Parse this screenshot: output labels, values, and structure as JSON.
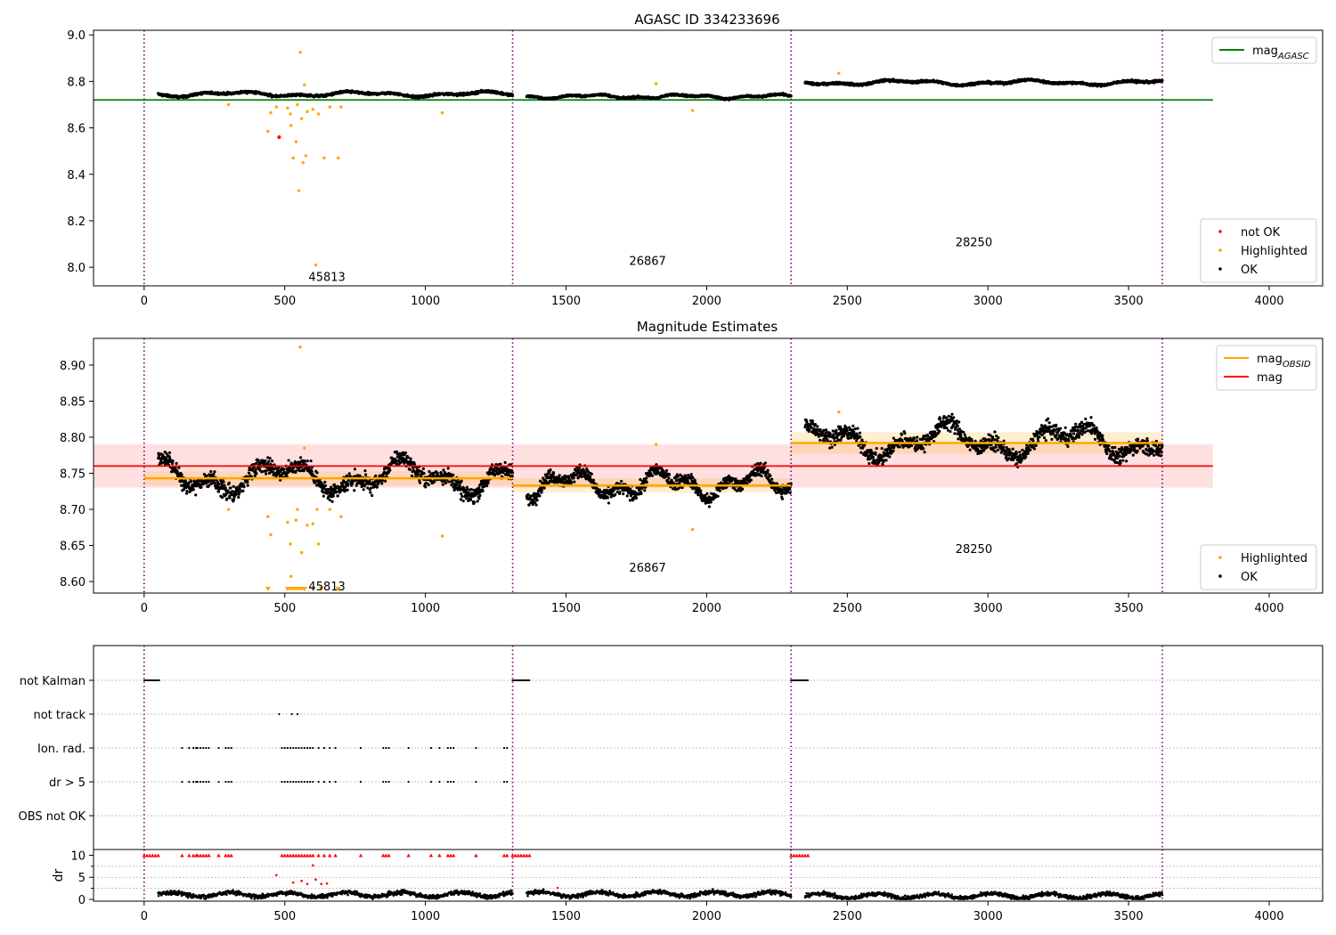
{
  "chart_data": [
    {
      "panel": "top",
      "type": "scatter",
      "title": "AGASC ID 334233696",
      "xlabel": "",
      "ylabel": "",
      "xlim": [
        -180,
        4190
      ],
      "ylim": [
        7.92,
        9.02
      ],
      "xticks": [
        0,
        500,
        1000,
        1500,
        2000,
        2500,
        3000,
        3500,
        4000
      ],
      "yticks": [
        8.0,
        8.2,
        8.4,
        8.6,
        8.8,
        9.0
      ],
      "ytick_labels": [
        "8.0",
        "8.2",
        "8.4",
        "8.6",
        "8.8",
        "9.0"
      ],
      "vlines": [
        0,
        1310,
        2300,
        3620
      ],
      "obsid_labels": [
        {
          "text": "45813",
          "x": 650,
          "y": 7.96
        },
        {
          "text": "26867",
          "x": 1790,
          "y": 8.03
        },
        {
          "text": "28250",
          "x": 2950,
          "y": 8.11
        }
      ],
      "hline": {
        "y": 8.72,
        "x_range": [
          -180,
          3800
        ],
        "color": "#008000",
        "label_main": "mag",
        "label_sub": "AGASC"
      },
      "segments": [
        {
          "x_range": [
            50,
            1310
          ],
          "level": 8.745,
          "amp": 0.03
        },
        {
          "x_range": [
            1360,
            2300
          ],
          "level": 8.735,
          "amp": 0.025
        },
        {
          "x_range": [
            2350,
            3620
          ],
          "level": 8.795,
          "amp": 0.03
        }
      ],
      "highlighted": [
        [
          300,
          8.7
        ],
        [
          440,
          8.585
        ],
        [
          450,
          8.665
        ],
        [
          470,
          8.69
        ],
        [
          510,
          8.685
        ],
        [
          520,
          8.66
        ],
        [
          522,
          8.61
        ],
        [
          530,
          8.47
        ],
        [
          540,
          8.54
        ],
        [
          545,
          8.7
        ],
        [
          550,
          8.33
        ],
        [
          555,
          8.925
        ],
        [
          560,
          8.64
        ],
        [
          565,
          8.45
        ],
        [
          570,
          8.785
        ],
        [
          575,
          8.48
        ],
        [
          580,
          8.67
        ],
        [
          600,
          8.68
        ],
        [
          610,
          8.01
        ],
        [
          620,
          8.66
        ],
        [
          640,
          8.47
        ],
        [
          660,
          8.69
        ],
        [
          690,
          8.47
        ],
        [
          700,
          8.69
        ],
        [
          1060,
          8.665
        ],
        [
          1820,
          8.79
        ],
        [
          1950,
          8.675
        ],
        [
          2470,
          8.835
        ]
      ],
      "not_ok": [
        [
          480,
          8.56
        ]
      ],
      "legend_top": [
        {
          "label": "mag",
          "sub": "AGASC",
          "color": "#008000",
          "style": "line"
        }
      ],
      "legend_bottom": [
        {
          "label": "not OK",
          "color": "#ff0000",
          "style": "dot"
        },
        {
          "label": "Highlighted",
          "color": "#ffa500",
          "style": "dot"
        },
        {
          "label": "OK",
          "color": "#000000",
          "style": "dot"
        }
      ]
    },
    {
      "panel": "middle",
      "type": "scatter",
      "title": "Magnitude Estimates",
      "xlabel": "",
      "ylabel": "",
      "xlim": [
        -180,
        4190
      ],
      "ylim": [
        8.584,
        8.937
      ],
      "xticks": [
        0,
        500,
        1000,
        1500,
        2000,
        2500,
        3000,
        3500,
        4000
      ],
      "yticks": [
        8.6,
        8.65,
        8.7,
        8.75,
        8.8,
        8.85,
        8.9
      ],
      "ytick_labels": [
        "8.60",
        "8.65",
        "8.70",
        "8.75",
        "8.80",
        "8.85",
        "8.90"
      ],
      "vlines": [
        0,
        1310,
        2300,
        3620
      ],
      "obsid_labels": [
        {
          "text": "45813",
          "x": 650,
          "y": 8.594
        },
        {
          "text": "26867",
          "x": 1790,
          "y": 8.62
        },
        {
          "text": "28250",
          "x": 2950,
          "y": 8.646
        }
      ],
      "mag_line": {
        "y": 8.76,
        "band": [
          8.73,
          8.79
        ],
        "x_range": [
          -180,
          3800
        ],
        "color": "#ff0000",
        "label": "mag"
      },
      "obsid_lines": [
        {
          "x_range": [
            0,
            1310
          ],
          "y": 8.743,
          "band": [
            8.733,
            8.753
          ]
        },
        {
          "x_range": [
            1310,
            2300
          ],
          "y": 8.733,
          "band": [
            8.723,
            8.743
          ]
        },
        {
          "x_range": [
            2300,
            3620
          ],
          "y": 8.792,
          "band": [
            8.777,
            8.807
          ]
        }
      ],
      "segments": [
        {
          "x_range": [
            50,
            1310
          ],
          "level": 8.745,
          "amp": 0.03
        },
        {
          "x_range": [
            1360,
            2300
          ],
          "level": 8.735,
          "amp": 0.025
        },
        {
          "x_range": [
            2350,
            3620
          ],
          "level": 8.795,
          "amp": 0.03
        }
      ],
      "highlighted": [
        [
          300,
          8.7
        ],
        [
          440,
          8.69
        ],
        [
          450,
          8.665
        ],
        [
          510,
          8.682
        ],
        [
          520,
          8.652
        ],
        [
          522,
          8.607
        ],
        [
          540,
          8.685
        ],
        [
          545,
          8.7
        ],
        [
          555,
          8.925
        ],
        [
          560,
          8.64
        ],
        [
          570,
          8.785
        ],
        [
          580,
          8.678
        ],
        [
          600,
          8.68
        ],
        [
          615,
          8.7
        ],
        [
          620,
          8.652
        ],
        [
          660,
          8.7
        ],
        [
          700,
          8.69
        ],
        [
          1060,
          8.663
        ],
        [
          1820,
          8.79
        ],
        [
          1950,
          8.672
        ],
        [
          2470,
          8.835
        ]
      ],
      "below_axis": [
        440,
        510,
        520,
        530,
        540,
        550,
        560,
        570,
        600,
        630,
        690
      ],
      "legend_top": [
        {
          "label": "mag",
          "sub": "OBSID",
          "color": "#ffa500",
          "style": "line"
        },
        {
          "label": "mag",
          "sub": "",
          "color": "#ff0000",
          "style": "line"
        }
      ],
      "legend_bottom": [
        {
          "label": "Highlighted",
          "color": "#ffa500",
          "style": "dot"
        },
        {
          "label": "OK",
          "color": "#000000",
          "style": "dot"
        }
      ]
    },
    {
      "panel": "flags",
      "type": "scatter",
      "xlim": [
        -180,
        4190
      ],
      "categories": [
        "not Kalman",
        "not track",
        "Ion. rad.",
        "dr > 5",
        "OBS not OK"
      ],
      "vlines": [
        0,
        1310,
        2300,
        3620
      ],
      "not_kalman_x_ranges": [
        [
          0,
          55
        ],
        [
          1310,
          1370
        ],
        [
          2300,
          2360
        ]
      ],
      "not_track_x": [
        480,
        525,
        545
      ],
      "ion_rad_x": [
        135,
        160,
        175,
        185,
        190,
        200,
        210,
        220,
        230,
        265,
        290,
        300,
        310,
        490,
        500,
        510,
        520,
        530,
        540,
        550,
        560,
        570,
        580,
        590,
        600,
        620,
        640,
        660,
        680,
        770,
        850,
        860,
        870,
        940,
        1020,
        1050,
        1080,
        1090,
        1100,
        1180,
        1280,
        1290
      ],
      "dr5_x": [
        135,
        160,
        175,
        185,
        190,
        200,
        210,
        220,
        230,
        265,
        290,
        300,
        310,
        490,
        500,
        510,
        520,
        530,
        540,
        550,
        560,
        570,
        580,
        590,
        600,
        620,
        640,
        660,
        680,
        770,
        850,
        860,
        870,
        940,
        1020,
        1050,
        1080,
        1090,
        1100,
        1180,
        1280,
        1290
      ],
      "obs_not_ok_x": []
    },
    {
      "panel": "dr",
      "type": "scatter",
      "ylabel": "dr",
      "xlim": [
        -180,
        4190
      ],
      "ylim": [
        -0.4,
        11.3
      ],
      "yticks": [
        0,
        5,
        10
      ],
      "ytick_labels": [
        "0",
        "5",
        "10"
      ],
      "xticks": [
        0,
        500,
        1000,
        1500,
        2000,
        2500,
        3000,
        3500,
        4000
      ],
      "vlines": [
        0,
        1310,
        2300,
        3620
      ],
      "capped_at_10_x": [
        0,
        10,
        20,
        30,
        40,
        50,
        135,
        160,
        175,
        185,
        190,
        200,
        210,
        220,
        230,
        265,
        290,
        300,
        310,
        490,
        500,
        510,
        520,
        530,
        540,
        550,
        560,
        570,
        580,
        590,
        600,
        620,
        640,
        660,
        680,
        770,
        850,
        860,
        870,
        940,
        1020,
        1050,
        1080,
        1090,
        1100,
        1180,
        1280,
        1290,
        1310,
        1320,
        1330,
        1340,
        1350,
        1360,
        1370,
        2300,
        2310,
        2320,
        2330,
        2340,
        2350,
        2360
      ],
      "red_points": [
        [
          470,
          5.5
        ],
        [
          530,
          3.8
        ],
        [
          560,
          4.2
        ],
        [
          580,
          3.5
        ],
        [
          600,
          7.7
        ],
        [
          610,
          4.5
        ],
        [
          630,
          3.5
        ],
        [
          650,
          3.6
        ],
        [
          1470,
          2.6
        ]
      ],
      "segments": [
        {
          "x_range": [
            50,
            1310
          ],
          "level": 1.1
        },
        {
          "x_range": [
            1360,
            2300
          ],
          "level": 1.2
        },
        {
          "x_range": [
            2350,
            3620
          ],
          "level": 0.8
        }
      ]
    }
  ]
}
